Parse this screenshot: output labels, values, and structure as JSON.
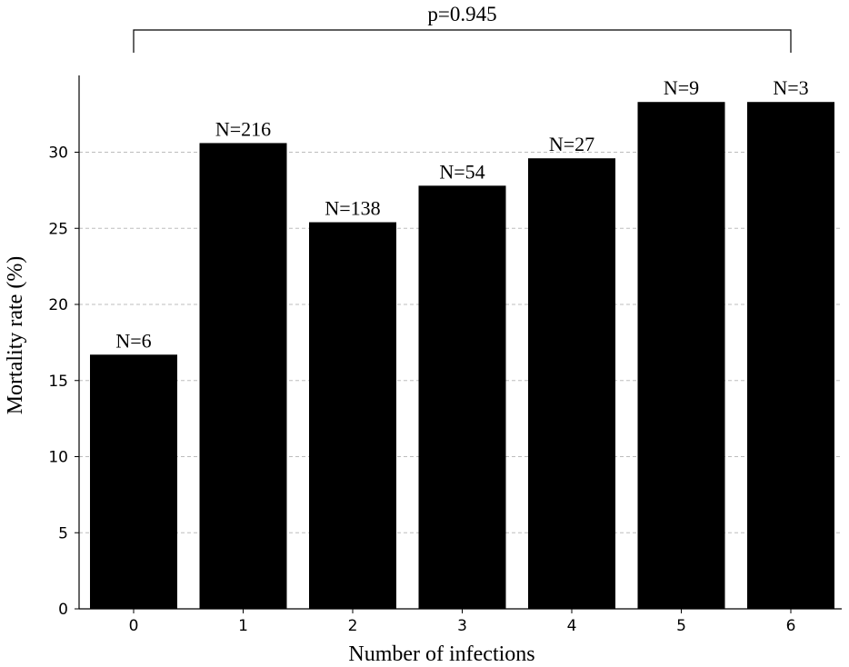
{
  "chart_data": {
    "type": "bar",
    "xlabel": "Number of infections",
    "ylabel": "Mortality rate (%)",
    "categories": [
      "0",
      "1",
      "2",
      "3",
      "4",
      "5",
      "6"
    ],
    "values": [
      16.7,
      30.6,
      25.4,
      27.8,
      29.6,
      33.3,
      33.3
    ],
    "bar_labels": [
      "N=6",
      "N=216",
      "N=138",
      "N=54",
      "N=27",
      "N=9",
      "N=3"
    ],
    "yticks": [
      0,
      5,
      10,
      15,
      20,
      25,
      30
    ],
    "ylim": [
      0,
      35
    ],
    "grid": "horizontal dashed",
    "bar_color": "#000000",
    "annotation": {
      "text": "p=0.945",
      "from_category": "0",
      "to_category": "6"
    }
  }
}
